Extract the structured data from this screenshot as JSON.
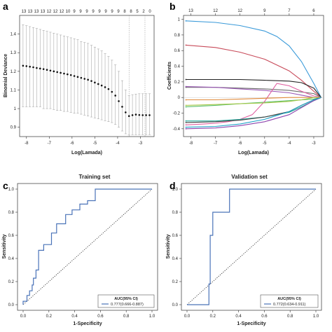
{
  "chart_data": [
    {
      "panel": "a",
      "type": "scatter",
      "xlabel": "Log(Lamada)",
      "ylabel": "Binomial Deviance",
      "xlim": [
        -8.3,
        -2.4
      ],
      "ylim": [
        0.85,
        1.5
      ],
      "x_ticks": [
        -8,
        -7,
        -6,
        -5,
        -4,
        -3
      ],
      "y_ticks": [
        0.9,
        1.0,
        1.1,
        1.2,
        1.3,
        1.4
      ],
      "y_tick_labels": [
        "0.9",
        "1",
        "1.1",
        "1.2",
        "1.3",
        "1.4"
      ],
      "top_counts": [
        "13",
        "13",
        "13",
        "13",
        "12",
        "12",
        "12",
        "10",
        "9",
        "9",
        "9",
        "9",
        "9",
        "9",
        "9",
        "9",
        "8",
        "8",
        "5",
        "2",
        "0"
      ],
      "vlines": [
        -3.5,
        -2.8
      ],
      "points": [
        {
          "x": -8.15,
          "y": 1.23,
          "lo": 1.01,
          "hi": 1.45
        },
        {
          "x": -8.0,
          "y": 1.228,
          "lo": 1.01,
          "hi": 1.445
        },
        {
          "x": -7.85,
          "y": 1.225,
          "lo": 1.01,
          "hi": 1.44
        },
        {
          "x": -7.7,
          "y": 1.222,
          "lo": 1.01,
          "hi": 1.435
        },
        {
          "x": -7.55,
          "y": 1.218,
          "lo": 1.01,
          "hi": 1.43
        },
        {
          "x": -7.4,
          "y": 1.215,
          "lo": 1.01,
          "hi": 1.425
        },
        {
          "x": -7.25,
          "y": 1.212,
          "lo": 1.0,
          "hi": 1.42
        },
        {
          "x": -7.1,
          "y": 1.208,
          "lo": 1.0,
          "hi": 1.415
        },
        {
          "x": -6.95,
          "y": 1.204,
          "lo": 1.0,
          "hi": 1.41
        },
        {
          "x": -6.8,
          "y": 1.2,
          "lo": 0.995,
          "hi": 1.405
        },
        {
          "x": -6.65,
          "y": 1.196,
          "lo": 0.99,
          "hi": 1.4
        },
        {
          "x": -6.5,
          "y": 1.192,
          "lo": 0.99,
          "hi": 1.395
        },
        {
          "x": -6.35,
          "y": 1.188,
          "lo": 0.985,
          "hi": 1.39
        },
        {
          "x": -6.2,
          "y": 1.184,
          "lo": 0.985,
          "hi": 1.385
        },
        {
          "x": -6.05,
          "y": 1.18,
          "lo": 0.98,
          "hi": 1.38
        },
        {
          "x": -5.9,
          "y": 1.175,
          "lo": 0.975,
          "hi": 1.375
        },
        {
          "x": -5.75,
          "y": 1.17,
          "lo": 0.975,
          "hi": 1.37
        },
        {
          "x": -5.6,
          "y": 1.165,
          "lo": 0.97,
          "hi": 1.36
        },
        {
          "x": -5.45,
          "y": 1.16,
          "lo": 0.965,
          "hi": 1.355
        },
        {
          "x": -5.3,
          "y": 1.155,
          "lo": 0.96,
          "hi": 1.35
        },
        {
          "x": -5.15,
          "y": 1.148,
          "lo": 0.955,
          "hi": 1.34
        },
        {
          "x": -5.0,
          "y": 1.14,
          "lo": 0.95,
          "hi": 1.33
        },
        {
          "x": -4.85,
          "y": 1.132,
          "lo": 0.945,
          "hi": 1.32
        },
        {
          "x": -4.7,
          "y": 1.124,
          "lo": 0.94,
          "hi": 1.31
        },
        {
          "x": -4.55,
          "y": 1.115,
          "lo": 0.935,
          "hi": 1.295
        },
        {
          "x": -4.4,
          "y": 1.105,
          "lo": 0.93,
          "hi": 1.28
        },
        {
          "x": -4.25,
          "y": 1.09,
          "lo": 0.925,
          "hi": 1.26
        },
        {
          "x": -4.1,
          "y": 1.07,
          "lo": 0.915,
          "hi": 1.235
        },
        {
          "x": -3.95,
          "y": 1.04,
          "lo": 0.9,
          "hi": 1.2
        },
        {
          "x": -3.8,
          "y": 1.01,
          "lo": 0.88,
          "hi": 1.15
        },
        {
          "x": -3.65,
          "y": 0.98,
          "lo": 0.865,
          "hi": 1.1
        },
        {
          "x": -3.5,
          "y": 0.96,
          "lo": 0.86,
          "hi": 1.07
        },
        {
          "x": -3.35,
          "y": 0.965,
          "lo": 0.86,
          "hi": 1.075
        },
        {
          "x": -3.2,
          "y": 0.968,
          "lo": 0.86,
          "hi": 1.078
        },
        {
          "x": -3.05,
          "y": 0.966,
          "lo": 0.86,
          "hi": 1.08
        },
        {
          "x": -2.9,
          "y": 0.965,
          "lo": 0.86,
          "hi": 1.08
        },
        {
          "x": -2.75,
          "y": 0.965,
          "lo": 0.86,
          "hi": 1.08
        },
        {
          "x": -2.6,
          "y": 0.965,
          "lo": 0.86,
          "hi": 1.08
        }
      ]
    },
    {
      "panel": "b",
      "type": "line",
      "xlabel": "Log(Lamada)",
      "ylabel": "Coefficients",
      "xlim": [
        -8.3,
        -2.6
      ],
      "ylim": [
        -0.5,
        1.05
      ],
      "x_ticks": [
        -8,
        -7,
        -6,
        -5,
        -4,
        -3
      ],
      "y_ticks": [
        -0.4,
        -0.2,
        0.0,
        0.2,
        0.4,
        0.6,
        0.8,
        1.0
      ],
      "y_tick_labels": [
        "-0.4",
        "-0.2",
        "0",
        "0.2",
        "0.4",
        "0.6",
        "0.8",
        "1"
      ],
      "top_count_labels": [
        {
          "x": -8.0,
          "label": "13"
        },
        {
          "x": -7.0,
          "label": "12"
        },
        {
          "x": -6.0,
          "label": "12"
        },
        {
          "x": -5.0,
          "label": "9"
        },
        {
          "x": -4.0,
          "label": "7"
        },
        {
          "x": -3.0,
          "label": "6"
        }
      ],
      "series": [
        {
          "color": "#3a9ad9",
          "x": [
            -8.2,
            -7,
            -6,
            -5,
            -4.5,
            -4,
            -3.5,
            -3,
            -2.7
          ],
          "y": [
            0.98,
            0.96,
            0.92,
            0.85,
            0.78,
            0.66,
            0.46,
            0.18,
            0.0
          ]
        },
        {
          "color": "#c84b5a",
          "x": [
            -8.2,
            -7,
            -6,
            -5,
            -4,
            -3.5,
            -3,
            -2.7
          ],
          "y": [
            0.67,
            0.64,
            0.58,
            0.49,
            0.34,
            0.22,
            0.08,
            0.0
          ]
        },
        {
          "color": "#222222",
          "x": [
            -8.2,
            -7,
            -6,
            -5,
            -4,
            -3.5,
            -3,
            -2.7
          ],
          "y": [
            0.23,
            0.23,
            0.23,
            0.22,
            0.21,
            0.19,
            0.12,
            0.0
          ]
        },
        {
          "color": "#6b6b6b",
          "x": [
            -8.2,
            -7,
            -6,
            -5,
            -4,
            -3,
            -2.7
          ],
          "y": [
            0.13,
            0.13,
            0.12,
            0.11,
            0.09,
            0.05,
            0.0
          ]
        },
        {
          "color": "#5bbf6a",
          "x": [
            -8.2,
            -7,
            -6,
            -5,
            -4,
            -3,
            -2.7
          ],
          "y": [
            -0.12,
            -0.1,
            -0.08,
            -0.06,
            -0.04,
            -0.02,
            0.0
          ]
        },
        {
          "color": "#9b59b6",
          "x": [
            -8.2,
            -7,
            -6,
            -5,
            -4,
            -3.5,
            -3,
            -2.7
          ],
          "y": [
            0.14,
            0.13,
            0.11,
            0.09,
            0.06,
            0.03,
            0.0,
            0.0
          ]
        },
        {
          "color": "#e05fa0",
          "x": [
            -8.2,
            -7.5,
            -7,
            -6.5,
            -6,
            -5.5,
            -5,
            -4.5,
            -4,
            -3.5,
            -3,
            -2.7
          ],
          "y": [
            -0.35,
            -0.34,
            -0.33,
            -0.31,
            -0.28,
            -0.22,
            -0.05,
            0.18,
            0.15,
            0.08,
            0.02,
            0.0
          ]
        },
        {
          "color": "#e08a3a",
          "x": [
            -8.2,
            -7,
            -6,
            -5,
            -4,
            -3.5,
            -3,
            -2.7
          ],
          "y": [
            -0.03,
            -0.03,
            -0.02,
            -0.01,
            0.0,
            0.0,
            0.0,
            0.0
          ]
        },
        {
          "color": "#26a69a",
          "x": [
            -8.2,
            -7,
            -6,
            -5,
            -4,
            -3.5,
            -3,
            -2.7
          ],
          "y": [
            -0.3,
            -0.3,
            -0.28,
            -0.25,
            -0.19,
            -0.12,
            -0.04,
            0.0
          ]
        },
        {
          "color": "#444444",
          "x": [
            -8.2,
            -7,
            -6,
            -5,
            -4,
            -3.5,
            -3,
            -2.7
          ],
          "y": [
            -0.32,
            -0.31,
            -0.29,
            -0.25,
            -0.18,
            -0.1,
            -0.03,
            0.0
          ]
        },
        {
          "color": "#a8c94a",
          "x": [
            -8.2,
            -7,
            -6,
            -5,
            -4,
            -3.5,
            -3,
            -2.7
          ],
          "y": [
            -0.1,
            -0.09,
            -0.08,
            -0.07,
            -0.05,
            -0.03,
            0.0,
            0.0
          ]
        },
        {
          "color": "#8e44ad",
          "x": [
            -8.2,
            -7,
            -6,
            -5,
            -4,
            -3.5,
            -3,
            -2.7
          ],
          "y": [
            -0.4,
            -0.39,
            -0.36,
            -0.31,
            -0.22,
            -0.13,
            -0.04,
            0.0
          ]
        },
        {
          "color": "#1fa2c8",
          "x": [
            -8.2,
            -7,
            -6,
            -5,
            -4,
            -3.5,
            -3,
            -2.7
          ],
          "y": [
            -0.38,
            -0.37,
            -0.34,
            -0.28,
            -0.18,
            -0.1,
            -0.03,
            0.0
          ]
        }
      ]
    },
    {
      "panel": "c",
      "type": "line",
      "title": "Training set",
      "xlabel": "1-Specificity",
      "ylabel": "Sensitivity",
      "xlim": [
        0,
        1
      ],
      "ylim": [
        0,
        1
      ],
      "x_ticks": [
        0.0,
        0.2,
        0.4,
        0.6,
        0.8,
        1.0
      ],
      "y_ticks": [
        0.0,
        0.2,
        0.4,
        0.6,
        0.8,
        1.0
      ],
      "tick_labels": [
        "0.0",
        "0.2",
        "0.4",
        "0.6",
        "0.8",
        "1.0"
      ],
      "legend_title": "AUC(95% CI)",
      "legend_entry": "0.777(0.666-0.887)",
      "roc_color": "#4a73b8",
      "roc_x": [
        0,
        0,
        0.03,
        0.03,
        0.05,
        0.05,
        0.07,
        0.07,
        0.08,
        0.08,
        0.1,
        0.1,
        0.12,
        0.12,
        0.16,
        0.16,
        0.22,
        0.22,
        0.26,
        0.26,
        0.33,
        0.33,
        0.38,
        0.38,
        0.44,
        0.44,
        0.5,
        0.5,
        0.56,
        0.56,
        0.65,
        0.65,
        1.0
      ],
      "roc_y": [
        0,
        0.03,
        0.03,
        0.08,
        0.08,
        0.12,
        0.12,
        0.17,
        0.17,
        0.23,
        0.23,
        0.3,
        0.3,
        0.47,
        0.47,
        0.52,
        0.52,
        0.62,
        0.62,
        0.7,
        0.7,
        0.78,
        0.78,
        0.82,
        0.82,
        0.87,
        0.87,
        0.9,
        0.9,
        1.0,
        1.0,
        1.0,
        1.0
      ]
    },
    {
      "panel": "d",
      "type": "line",
      "title": "Validation set",
      "xlabel": "1-Specificity",
      "ylabel": "Sensitivity",
      "xlim": [
        0,
        1
      ],
      "ylim": [
        0,
        1
      ],
      "x_ticks": [
        0.0,
        0.2,
        0.4,
        0.6,
        0.8,
        1.0
      ],
      "y_ticks": [
        0.0,
        0.2,
        0.4,
        0.6,
        0.8,
        1.0
      ],
      "tick_labels": [
        "0.0",
        "0.2",
        "0.4",
        "0.6",
        "0.8",
        "1.0"
      ],
      "legend_title": "AUC(95% CI)",
      "legend_entry": "0.772(0.634-0.911)",
      "roc_color": "#4a73b8",
      "roc_x": [
        0,
        0.17,
        0.17,
        0.18,
        0.18,
        0.2,
        0.2,
        0.33,
        0.33,
        1.0
      ],
      "roc_y": [
        0,
        0,
        0.18,
        0.18,
        0.6,
        0.6,
        0.8,
        0.8,
        1.0,
        1.0
      ]
    }
  ]
}
